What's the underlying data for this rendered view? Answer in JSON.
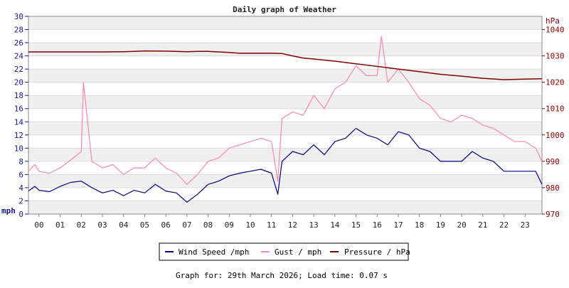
{
  "chart_data": {
    "type": "line",
    "title": "Daily graph of Weather",
    "left_axis": {
      "unit": "mph",
      "min": 0,
      "max": 30,
      "ticks": [
        0,
        2,
        4,
        6,
        8,
        10,
        12,
        14,
        16,
        18,
        20,
        22,
        24,
        26,
        28,
        30
      ]
    },
    "right_axis": {
      "unit": "hPa",
      "min": 970,
      "max": 1045,
      "ticks": [
        970,
        980,
        990,
        1000,
        1010,
        1020,
        1030,
        1040
      ]
    },
    "x_axis": {
      "min": -0.5,
      "max": 23.8,
      "tick_labels": [
        "00",
        "01",
        "02",
        "03",
        "04",
        "05",
        "06",
        "07",
        "08",
        "09",
        "10",
        "11",
        "12",
        "13",
        "14",
        "15",
        "16",
        "17",
        "18",
        "19",
        "20",
        "21",
        "22",
        "23"
      ]
    },
    "grid": true,
    "legend_position": "bottom-center",
    "series": [
      {
        "name": "Wind Speed /mph",
        "axis": "left",
        "color": "#000080",
        "x": [
          -0.5,
          -0.2,
          0,
          0.5,
          1,
          1.5,
          2,
          2.5,
          3,
          3.5,
          4,
          4.5,
          5,
          5.5,
          6,
          6.5,
          7,
          7.5,
          8,
          8.5,
          9,
          9.5,
          10,
          10.5,
          11,
          11.3,
          11.5,
          12,
          12.5,
          13,
          13.5,
          14,
          14.5,
          15,
          15.5,
          16,
          16.5,
          17,
          17.5,
          18,
          18.5,
          19,
          19.5,
          20,
          20.5,
          21,
          21.5,
          22,
          22.5,
          23,
          23.5,
          23.8
        ],
        "values": [
          3.5,
          4.2,
          3.6,
          3.4,
          4.2,
          4.8,
          5.0,
          4.0,
          3.2,
          3.6,
          2.8,
          3.6,
          3.2,
          4.5,
          3.5,
          3.2,
          1.8,
          3.0,
          4.5,
          5.0,
          5.8,
          6.2,
          6.5,
          6.8,
          6.2,
          3.0,
          8.0,
          9.5,
          9.0,
          10.5,
          9.0,
          11.0,
          11.5,
          13.0,
          12.0,
          11.5,
          10.5,
          12.5,
          12.0,
          10.0,
          9.5,
          8.0,
          8.0,
          8.0,
          9.5,
          8.5,
          8.0,
          6.5,
          6.5,
          6.5,
          6.5,
          4.5
        ]
      },
      {
        "name": "Gust / mph",
        "axis": "left",
        "color": "#ff88aa",
        "x": [
          -0.5,
          -0.2,
          0,
          0.5,
          1,
          1.5,
          2,
          2.1,
          2.5,
          3,
          3.5,
          4,
          4.5,
          5,
          5.5,
          6,
          6.5,
          7,
          7.5,
          8,
          8.5,
          9,
          9.5,
          10,
          10.5,
          11,
          11.3,
          11.5,
          12,
          12.5,
          13,
          13.5,
          14,
          14.5,
          15,
          15.5,
          16,
          16.2,
          16.5,
          17,
          17.5,
          18,
          18.5,
          19,
          19.5,
          20,
          20.5,
          21,
          21.5,
          22,
          22.5,
          23,
          23.5,
          23.8
        ],
        "values": [
          6.5,
          7.5,
          6.5,
          6.2,
          7.0,
          8.2,
          9.5,
          20.0,
          8.0,
          7.0,
          7.5,
          6.0,
          7.0,
          7.0,
          8.5,
          7.0,
          6.2,
          4.5,
          6.0,
          8.0,
          8.5,
          10.0,
          10.5,
          11.0,
          11.5,
          11.0,
          5.0,
          14.5,
          15.5,
          15.0,
          18.0,
          16.0,
          19.0,
          20.0,
          22.5,
          21.0,
          21.0,
          27.0,
          20.0,
          22.0,
          20.0,
          17.5,
          16.5,
          14.5,
          14.0,
          15.0,
          14.5,
          13.5,
          13.0,
          12.0,
          11.0,
          11.0,
          10.0,
          8.0
        ]
      },
      {
        "name": "Pressure / hPa",
        "axis": "right",
        "color": "#800000",
        "x": [
          -0.5,
          0,
          1,
          2,
          3,
          4,
          4.5,
          5,
          6,
          7,
          7.5,
          8,
          9,
          9.5,
          10,
          11,
          11.5,
          12,
          12.5,
          13,
          14,
          15,
          16,
          17,
          18,
          19,
          20,
          21,
          22,
          23,
          23.8
        ],
        "values": [
          1031.5,
          1031.5,
          1031.5,
          1031.5,
          1031.5,
          1031.6,
          1031.7,
          1031.9,
          1031.8,
          1031.6,
          1031.7,
          1031.7,
          1031.3,
          1031.0,
          1031.0,
          1031.0,
          1030.9,
          1030.0,
          1029.2,
          1028.8,
          1028.0,
          1027.0,
          1026.0,
          1025.0,
          1024.0,
          1023.0,
          1022.3,
          1021.5,
          1021.0,
          1021.2,
          1021.3
        ]
      }
    ]
  },
  "footer": "Graph for: 29th March 2026; Load time: 0.07 s"
}
